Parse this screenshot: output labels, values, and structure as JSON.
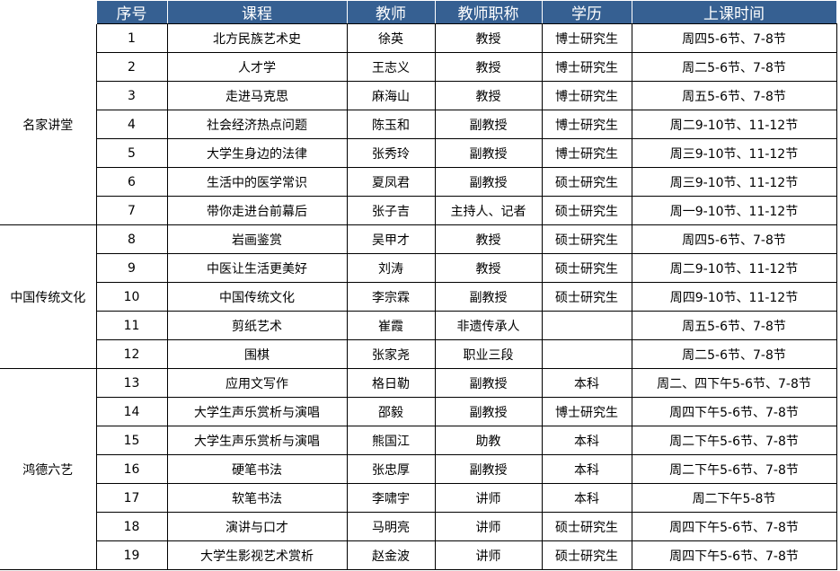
{
  "header": [
    "序号",
    "课程",
    "教师",
    "教师职称",
    "学历",
    "上课时间"
  ],
  "groups": [
    {
      "name": "名家讲堂",
      "rows": [
        [
          "1",
          "北方民族艺术史",
          "徐英",
          "教授",
          "博士研究生",
          "周四5-6节、7-8节"
        ],
        [
          "2",
          "人才学",
          "王志义",
          "教授",
          "博士研究生",
          "周二5-6节、7-8节"
        ],
        [
          "3",
          "走进马克思",
          "麻海山",
          "教授",
          "博士研究生",
          "周五5-6节、7-8节"
        ],
        [
          "4",
          "社会经济热点问题",
          "陈玉和",
          "副教授",
          "博士研究生",
          "周二9-10节、11-12节"
        ],
        [
          "5",
          "大学生身边的法律",
          "张秀玲",
          "副教授",
          "博士研究生",
          "周三9-10节、11-12节"
        ],
        [
          "6",
          "生活中的医学常识",
          "夏凤君",
          "副教授",
          "硕士研究生",
          "周三9-10节、11-12节"
        ],
        [
          "7",
          "带你走进台前幕后",
          "张子吉",
          "主持人、记者",
          "硕士研究生",
          "周一9-10节、11-12节"
        ]
      ]
    },
    {
      "name": "中国传统文化",
      "rows": [
        [
          "8",
          "岩画鉴赏",
          "吴甲才",
          "教授",
          "硕士研究生",
          "周四5-6节、7-8节"
        ],
        [
          "9",
          "中医让生活更美好",
          "刘涛",
          "教授",
          "硕士研究生",
          "周二9-10节、11-12节"
        ],
        [
          "10",
          "中国传统文化",
          "李宗霖",
          "副教授",
          "硕士研究生",
          "周四9-10节、11-12节"
        ],
        [
          "11",
          "剪纸艺术",
          "崔霞",
          "非遗传承人",
          "",
          "周五5-6节、7-8节"
        ],
        [
          "12",
          "围棋",
          "张家尧",
          "职业三段",
          "",
          "周二5-6节、7-8节"
        ]
      ]
    },
    {
      "name": "鸿德六艺",
      "rows": [
        [
          "13",
          "应用文写作",
          "格日勒",
          "副教授",
          "本科",
          "周二、四下午5-6节、7-8节"
        ],
        [
          "14",
          "大学生声乐赏析与演唱",
          "邵毅",
          "副教授",
          "博士研究生",
          "周四下午5-6节、7-8节"
        ],
        [
          "15",
          "大学生声乐赏析与演唱",
          "熊国江",
          "助教",
          "本科",
          "周二下午5-6节、7-8节"
        ],
        [
          "16",
          "硬笔书法",
          "张忠厚",
          "副教授",
          "本科",
          "周二下午5-6节、7-8节"
        ],
        [
          "17",
          "软笔书法",
          "李啸宇",
          "讲师",
          "本科",
          "周二下午5-8节"
        ],
        [
          "18",
          "演讲与口才",
          "马明亮",
          "讲师",
          "硕士研究生",
          "周四下午5-6节、7-8节"
        ],
        [
          "19",
          "大学生影视艺术赏析",
          "赵金波",
          "讲师",
          "硕士研究生",
          "周四下午5-6节、7-8节"
        ]
      ]
    }
  ],
  "colors": {
    "header_bg": "#366092",
    "header_text": "#ffffff"
  }
}
